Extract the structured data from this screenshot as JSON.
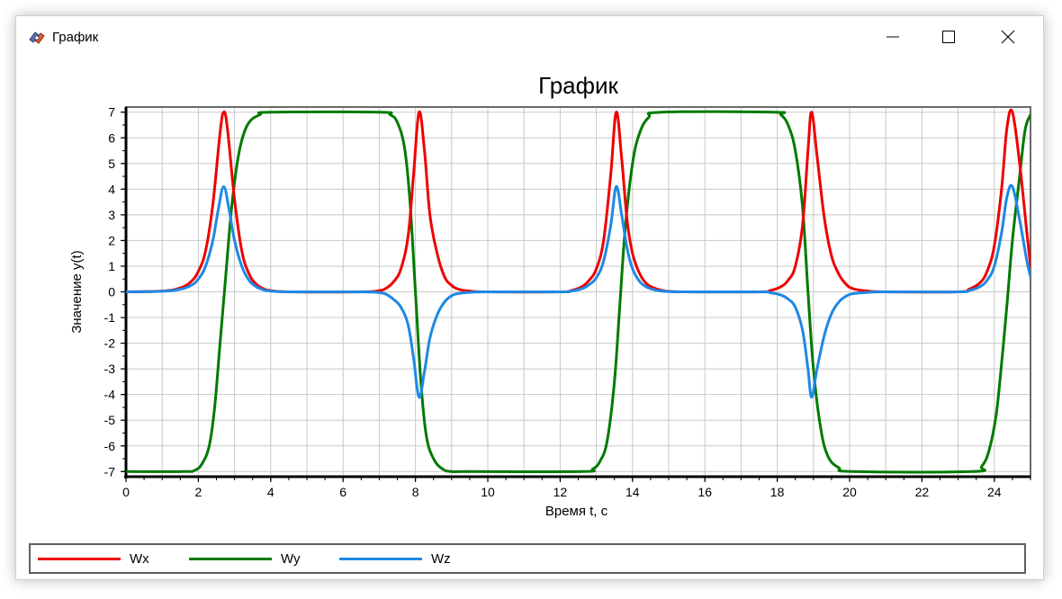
{
  "window": {
    "title": "График",
    "icon": "app-logo-icon",
    "controls": [
      "minimize-icon",
      "maximize-icon",
      "close-icon"
    ]
  },
  "chart_data": {
    "type": "line",
    "title": "График",
    "xlabel": "Время t, с",
    "ylabel": "Значение y(t)",
    "xlim": [
      0,
      25
    ],
    "ylim": [
      -7.2,
      7.2
    ],
    "xticks": [
      0,
      2,
      4,
      6,
      8,
      10,
      12,
      14,
      16,
      18,
      20,
      22,
      24
    ],
    "yticks": [
      -7,
      -6,
      -5,
      -4,
      -3,
      -2,
      -1,
      0,
      1,
      2,
      3,
      4,
      5,
      6,
      7
    ],
    "grid": true,
    "legend_position": "bottom",
    "series": [
      {
        "name": "Wx",
        "color": "#ee0000",
        "x": [
          0,
          1.0,
          1.5,
          1.8,
          2.0,
          2.2,
          2.4,
          2.6,
          2.7,
          2.8,
          3.0,
          3.2,
          3.4,
          3.6,
          3.8,
          4.0,
          4.5,
          6.5,
          7.0,
          7.2,
          7.4,
          7.6,
          7.8,
          7.95,
          8.1,
          8.25,
          8.4,
          8.6,
          8.8,
          9.0,
          9.2,
          9.5,
          10.0,
          12.0,
          12.3,
          12.6,
          12.8,
          13.0,
          13.2,
          13.4,
          13.55,
          13.7,
          13.85,
          14.0,
          14.2,
          14.4,
          14.6,
          14.8,
          15.0,
          15.5,
          17.5,
          17.8,
          18.1,
          18.3,
          18.5,
          18.7,
          18.85,
          18.95,
          19.1,
          19.3,
          19.5,
          19.7,
          19.9,
          20.1,
          20.5,
          21.0,
          23.0,
          23.3,
          23.6,
          23.8,
          24.0,
          24.2,
          24.35,
          24.5,
          24.7,
          24.9,
          25.0
        ],
        "y": [
          0,
          0.03,
          0.15,
          0.4,
          0.8,
          1.6,
          3.4,
          6.2,
          7.0,
          6.4,
          3.6,
          1.6,
          0.7,
          0.3,
          0.12,
          0.05,
          0.0,
          0.0,
          0.05,
          0.15,
          0.4,
          0.9,
          2.2,
          4.6,
          7.0,
          5.5,
          3.0,
          1.5,
          0.6,
          0.25,
          0.1,
          0.03,
          0.0,
          0.0,
          0.05,
          0.2,
          0.45,
          0.9,
          2.0,
          4.6,
          7.0,
          5.2,
          2.8,
          1.5,
          0.7,
          0.3,
          0.15,
          0.06,
          0.02,
          0.0,
          0.0,
          0.05,
          0.2,
          0.45,
          1.0,
          2.6,
          5.5,
          7.0,
          5.3,
          2.9,
          1.4,
          0.7,
          0.3,
          0.12,
          0.03,
          0.0,
          0.0,
          0.1,
          0.35,
          0.8,
          1.8,
          4.0,
          6.4,
          7.0,
          5.0,
          2.3,
          1.0
        ]
      },
      {
        "name": "Wy",
        "color": "#007a00",
        "x": [
          0,
          1.6,
          1.9,
          2.1,
          2.3,
          2.45,
          2.6,
          2.75,
          2.9,
          3.05,
          3.2,
          3.4,
          3.7,
          4.0,
          7.0,
          7.3,
          7.5,
          7.7,
          7.85,
          8.0,
          8.15,
          8.3,
          8.5,
          8.75,
          9.0,
          9.5,
          12.6,
          12.9,
          13.1,
          13.3,
          13.5,
          13.65,
          13.8,
          14.0,
          14.2,
          14.45,
          14.8,
          17.9,
          18.1,
          18.3,
          18.5,
          18.7,
          18.85,
          19.0,
          19.2,
          19.4,
          19.7,
          20.1,
          23.4,
          23.65,
          23.85,
          24.05,
          24.2,
          24.35,
          24.5,
          24.7,
          24.85,
          25.0
        ],
        "y": [
          -7,
          -7,
          -6.95,
          -6.7,
          -6.0,
          -4.5,
          -2.0,
          0.5,
          3.0,
          4.8,
          5.9,
          6.6,
          6.9,
          7.0,
          7.0,
          6.9,
          6.6,
          5.6,
          3.5,
          0.0,
          -3.5,
          -5.6,
          -6.5,
          -6.9,
          -7.0,
          -7.0,
          -7.0,
          -6.9,
          -6.6,
          -5.8,
          -3.5,
          -0.5,
          2.5,
          5.0,
          6.2,
          6.8,
          7.0,
          7.0,
          6.9,
          6.5,
          5.5,
          3.3,
          0.0,
          -3.0,
          -5.3,
          -6.4,
          -6.85,
          -7.0,
          -7.0,
          -6.8,
          -6.2,
          -4.8,
          -2.8,
          -0.5,
          2.0,
          4.5,
          6.3,
          6.9
        ]
      },
      {
        "name": "Wz",
        "color": "#1e88e5",
        "x": [
          0,
          1.0,
          1.5,
          1.8,
          2.0,
          2.2,
          2.4,
          2.55,
          2.7,
          2.85,
          3.0,
          3.2,
          3.4,
          3.6,
          3.8,
          4.0,
          4.5,
          6.5,
          7.0,
          7.2,
          7.4,
          7.6,
          7.8,
          7.95,
          8.1,
          8.25,
          8.4,
          8.6,
          8.8,
          9.0,
          9.2,
          9.5,
          10.0,
          12.0,
          12.3,
          12.6,
          12.8,
          13.0,
          13.2,
          13.4,
          13.55,
          13.7,
          13.85,
          14.0,
          14.2,
          14.4,
          14.6,
          14.8,
          15.0,
          15.5,
          17.5,
          17.8,
          18.1,
          18.3,
          18.5,
          18.7,
          18.85,
          18.95,
          19.1,
          19.3,
          19.5,
          19.7,
          19.9,
          20.1,
          20.5,
          21.0,
          23.0,
          23.3,
          23.6,
          23.8,
          24.0,
          24.2,
          24.35,
          24.5,
          24.7,
          24.9,
          25.0
        ],
        "y": [
          0,
          0.02,
          0.1,
          0.25,
          0.5,
          1.0,
          2.0,
          3.2,
          4.1,
          3.2,
          2.0,
          1.0,
          0.45,
          0.2,
          0.08,
          0.03,
          0.0,
          0.0,
          -0.03,
          -0.1,
          -0.3,
          -0.6,
          -1.3,
          -2.6,
          -4.1,
          -3.1,
          -1.8,
          -0.9,
          -0.4,
          -0.15,
          -0.06,
          -0.02,
          0.0,
          0.0,
          0.03,
          0.12,
          0.28,
          0.55,
          1.2,
          2.6,
          4.1,
          3.0,
          1.7,
          0.9,
          0.4,
          0.18,
          0.08,
          0.03,
          0.01,
          0.0,
          0.0,
          -0.03,
          -0.12,
          -0.28,
          -0.6,
          -1.5,
          -3.0,
          -4.1,
          -3.0,
          -1.7,
          -0.85,
          -0.4,
          -0.17,
          -0.07,
          -0.02,
          0.0,
          0.0,
          0.05,
          0.2,
          0.45,
          1.0,
          2.3,
          3.7,
          4.1,
          2.8,
          1.2,
          0.6
        ]
      }
    ]
  }
}
